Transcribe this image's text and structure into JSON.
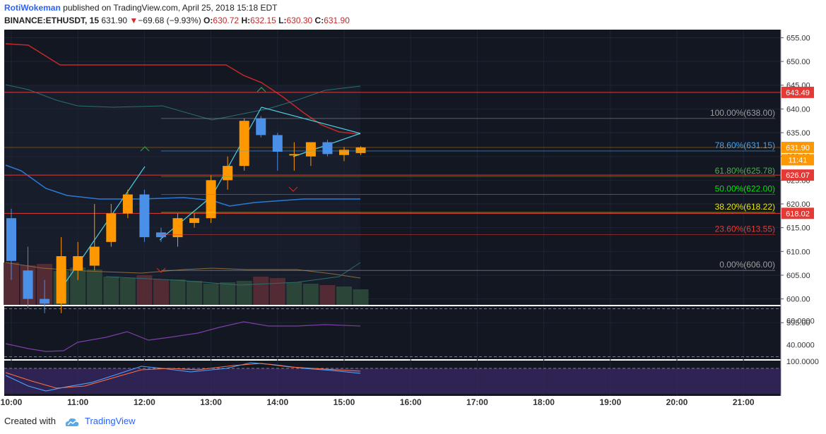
{
  "header": {
    "user": "RotiWokeman",
    "published_text": "published on TradingView.com, April 25, 2018 15:18 EDT",
    "symbol": "BINANCE:ETHUSDT, 15",
    "last": "631.90",
    "change": "−69.68 (−9.93%)",
    "o_label": "O:",
    "o": "630.72",
    "h_label": "H:",
    "h": "632.15",
    "l_label": "L:",
    "l": "630.30",
    "c_label": "C:",
    "c": "631.90"
  },
  "footer": {
    "created_with": "Created with",
    "brand": "TradingView"
  },
  "colors": {
    "background": "#131722",
    "up": "#ff9800",
    "down": "#4a8fe8",
    "fib_100": "#9e9e9e",
    "fib_786": "#42a5f5",
    "fib_618": "#4caf50",
    "fib_50": "#00e600",
    "fib_382": "#e6e600",
    "fib_236": "#e53935",
    "fib_0": "#9e9e9e",
    "hline": "#e53935",
    "triangle": "#4dd0e1"
  },
  "chart_data": {
    "type": "candlestick",
    "timeframe": "15",
    "y_range": [
      590,
      657
    ],
    "y_ticks": [
      "655.00",
      "650.00",
      "645.00",
      "640.00",
      "635.00",
      "630.00",
      "625.00",
      "620.00",
      "615.00",
      "610.00",
      "605.00",
      "600.00",
      "595.00"
    ],
    "x_ticks": [
      "10:00",
      "11:00",
      "12:00",
      "13:00",
      "14:00",
      "15:00",
      "16:00",
      "17:00",
      "18:00",
      "19:00",
      "20:00",
      "21:00"
    ],
    "candles": [
      {
        "t": "10:00",
        "o": 617,
        "h": 619,
        "l": 604,
        "c": 608
      },
      {
        "t": "10:15",
        "o": 606,
        "h": 611,
        "l": 598,
        "c": 600
      },
      {
        "t": "10:30",
        "o": 600,
        "h": 604,
        "l": 597,
        "c": 599
      },
      {
        "t": "10:45",
        "o": 599,
        "h": 613,
        "l": 597,
        "c": 609
      },
      {
        "t": "11:00",
        "o": 606,
        "h": 612,
        "l": 604,
        "c": 609
      },
      {
        "t": "11:15",
        "o": 607,
        "h": 620,
        "l": 606,
        "c": 611
      },
      {
        "t": "11:30",
        "o": 612,
        "h": 620,
        "l": 611,
        "c": 618
      },
      {
        "t": "11:45",
        "o": 618,
        "h": 623,
        "l": 617,
        "c": 622
      },
      {
        "t": "12:00",
        "o": 622,
        "h": 623,
        "l": 612,
        "c": 613
      },
      {
        "t": "12:15",
        "o": 614,
        "h": 615,
        "l": 612,
        "c": 613
      },
      {
        "t": "12:30",
        "o": 613,
        "h": 618,
        "l": 611,
        "c": 617
      },
      {
        "t": "12:45",
        "o": 616,
        "h": 618,
        "l": 615,
        "c": 617
      },
      {
        "t": "13:00",
        "o": 617,
        "h": 626,
        "l": 616,
        "c": 625
      },
      {
        "t": "13:15",
        "o": 625,
        "h": 630,
        "l": 623,
        "c": 628
      },
      {
        "t": "13:30",
        "o": 628,
        "h": 638,
        "l": 627,
        "c": 637.5
      },
      {
        "t": "13:45",
        "o": 638,
        "h": 638.5,
        "l": 634,
        "c": 634.5
      },
      {
        "t": "14:00",
        "o": 634.5,
        "h": 635,
        "l": 627,
        "c": 631
      },
      {
        "t": "14:15",
        "o": 630.5,
        "h": 633,
        "l": 627,
        "c": 630.5
      },
      {
        "t": "14:30",
        "o": 630,
        "h": 633,
        "l": 628,
        "c": 633
      },
      {
        "t": "14:45",
        "o": 633,
        "h": 633.5,
        "l": 630,
        "c": 630.5
      },
      {
        "t": "15:00",
        "o": 630.3,
        "h": 632,
        "l": 629,
        "c": 631.4
      },
      {
        "t": "15:15",
        "o": 630.72,
        "h": 632.15,
        "l": 630.3,
        "c": 631.9
      }
    ],
    "fib_levels": [
      {
        "label": "100.00%(638.00)",
        "value": 638.0
      },
      {
        "label": "78.60%(631.15)",
        "value": 631.15
      },
      {
        "label": "61.80%(625.78)",
        "value": 625.78
      },
      {
        "label": "50.00%(622.00)",
        "value": 622.0
      },
      {
        "label": "38.20%(618.22)",
        "value": 618.22
      },
      {
        "label": "23.60%(613.55)",
        "value": 613.55
      },
      {
        "label": "0.00%(606.00)",
        "value": 606.0
      }
    ],
    "price_tags": [
      {
        "label": "643.49",
        "value": 643.49,
        "color": "#e53935"
      },
      {
        "label": "631.90",
        "value": 631.9,
        "color": "#ff9800"
      },
      {
        "label": "11:41",
        "value": 629.3,
        "color": "#ff9800"
      },
      {
        "label": "626.07",
        "value": 626.07,
        "color": "#e53935"
      },
      {
        "label": "618.02",
        "value": 618.02,
        "color": "#e53935"
      }
    ],
    "horizontal_lines": [
      643.49,
      626.07,
      618.02
    ],
    "rsi": {
      "ticks": [
        "60.0000",
        "40.0000"
      ],
      "range": [
        28,
        72
      ]
    },
    "stoch": {
      "ticks": [
        "100.0000"
      ]
    }
  }
}
